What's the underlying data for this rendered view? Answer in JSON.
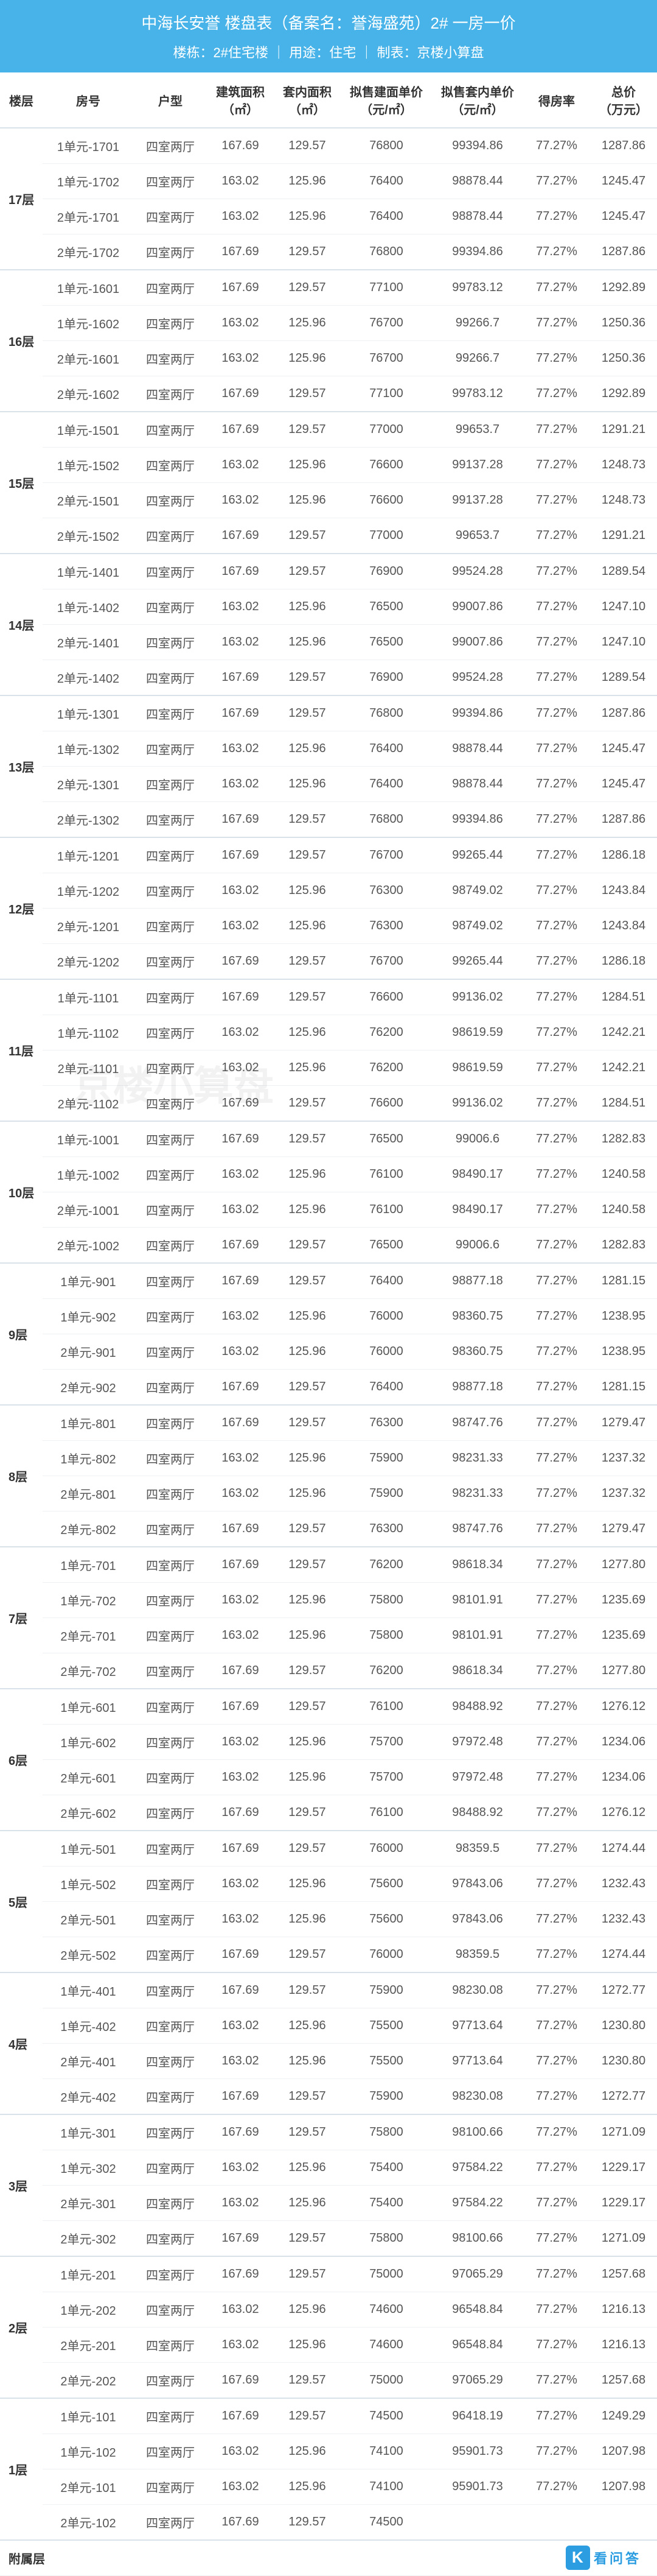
{
  "header": {
    "title": "中海长安誉 楼盘表（备案名：誉海盛苑）2# 一房一价",
    "sub": "楼栋：2#住宅楼 ｜ 用途：住宅 ｜ 制表：京楼小算盘"
  },
  "columns": [
    {
      "label": "楼层"
    },
    {
      "label": "房号"
    },
    {
      "label": "户型"
    },
    {
      "label": "建筑面积",
      "unit": "（㎡）"
    },
    {
      "label": "套内面积",
      "unit": "（㎡）"
    },
    {
      "label": "拟售建面单价",
      "unit": "（元/㎡）"
    },
    {
      "label": "拟售套内单价",
      "unit": "（元/㎡）"
    },
    {
      "label": "得房率"
    },
    {
      "label": "总价",
      "unit": "（万元）"
    }
  ],
  "col_classes": [
    "col-floor",
    "col-room",
    "col-type",
    "col-barea",
    "col-iarea",
    "col-bprice",
    "col-iprice",
    "col-ratio",
    "col-total"
  ],
  "floors": [
    {
      "floor": "17层",
      "rows": [
        [
          "1单元-1701",
          "四室两厅",
          "167.69",
          "129.57",
          "76800",
          "99394.86",
          "77.27%",
          "1287.86"
        ],
        [
          "1单元-1702",
          "四室两厅",
          "163.02",
          "125.96",
          "76400",
          "98878.44",
          "77.27%",
          "1245.47"
        ],
        [
          "2单元-1701",
          "四室两厅",
          "163.02",
          "125.96",
          "76400",
          "98878.44",
          "77.27%",
          "1245.47"
        ],
        [
          "2单元-1702",
          "四室两厅",
          "167.69",
          "129.57",
          "76800",
          "99394.86",
          "77.27%",
          "1287.86"
        ]
      ]
    },
    {
      "floor": "16层",
      "rows": [
        [
          "1单元-1601",
          "四室两厅",
          "167.69",
          "129.57",
          "77100",
          "99783.12",
          "77.27%",
          "1292.89"
        ],
        [
          "1单元-1602",
          "四室两厅",
          "163.02",
          "125.96",
          "76700",
          "99266.7",
          "77.27%",
          "1250.36"
        ],
        [
          "2单元-1601",
          "四室两厅",
          "163.02",
          "125.96",
          "76700",
          "99266.7",
          "77.27%",
          "1250.36"
        ],
        [
          "2单元-1602",
          "四室两厅",
          "167.69",
          "129.57",
          "77100",
          "99783.12",
          "77.27%",
          "1292.89"
        ]
      ]
    },
    {
      "floor": "15层",
      "rows": [
        [
          "1单元-1501",
          "四室两厅",
          "167.69",
          "129.57",
          "77000",
          "99653.7",
          "77.27%",
          "1291.21"
        ],
        [
          "1单元-1502",
          "四室两厅",
          "163.02",
          "125.96",
          "76600",
          "99137.28",
          "77.27%",
          "1248.73"
        ],
        [
          "2单元-1501",
          "四室两厅",
          "163.02",
          "125.96",
          "76600",
          "99137.28",
          "77.27%",
          "1248.73"
        ],
        [
          "2单元-1502",
          "四室两厅",
          "167.69",
          "129.57",
          "77000",
          "99653.7",
          "77.27%",
          "1291.21"
        ]
      ]
    },
    {
      "floor": "14层",
      "rows": [
        [
          "1单元-1401",
          "四室两厅",
          "167.69",
          "129.57",
          "76900",
          "99524.28",
          "77.27%",
          "1289.54"
        ],
        [
          "1单元-1402",
          "四室两厅",
          "163.02",
          "125.96",
          "76500",
          "99007.86",
          "77.27%",
          "1247.10"
        ],
        [
          "2单元-1401",
          "四室两厅",
          "163.02",
          "125.96",
          "76500",
          "99007.86",
          "77.27%",
          "1247.10"
        ],
        [
          "2单元-1402",
          "四室两厅",
          "167.69",
          "129.57",
          "76900",
          "99524.28",
          "77.27%",
          "1289.54"
        ]
      ]
    },
    {
      "floor": "13层",
      "rows": [
        [
          "1单元-1301",
          "四室两厅",
          "167.69",
          "129.57",
          "76800",
          "99394.86",
          "77.27%",
          "1287.86"
        ],
        [
          "1单元-1302",
          "四室两厅",
          "163.02",
          "125.96",
          "76400",
          "98878.44",
          "77.27%",
          "1245.47"
        ],
        [
          "2单元-1301",
          "四室两厅",
          "163.02",
          "125.96",
          "76400",
          "98878.44",
          "77.27%",
          "1245.47"
        ],
        [
          "2单元-1302",
          "四室两厅",
          "167.69",
          "129.57",
          "76800",
          "99394.86",
          "77.27%",
          "1287.86"
        ]
      ]
    },
    {
      "floor": "12层",
      "rows": [
        [
          "1单元-1201",
          "四室两厅",
          "167.69",
          "129.57",
          "76700",
          "99265.44",
          "77.27%",
          "1286.18"
        ],
        [
          "1单元-1202",
          "四室两厅",
          "163.02",
          "125.96",
          "76300",
          "98749.02",
          "77.27%",
          "1243.84"
        ],
        [
          "2单元-1201",
          "四室两厅",
          "163.02",
          "125.96",
          "76300",
          "98749.02",
          "77.27%",
          "1243.84"
        ],
        [
          "2单元-1202",
          "四室两厅",
          "167.69",
          "129.57",
          "76700",
          "99265.44",
          "77.27%",
          "1286.18"
        ]
      ]
    },
    {
      "floor": "11层",
      "rows": [
        [
          "1单元-1101",
          "四室两厅",
          "167.69",
          "129.57",
          "76600",
          "99136.02",
          "77.27%",
          "1284.51"
        ],
        [
          "1单元-1102",
          "四室两厅",
          "163.02",
          "125.96",
          "76200",
          "98619.59",
          "77.27%",
          "1242.21"
        ],
        [
          "2单元-1101",
          "四室两厅",
          "163.02",
          "125.96",
          "76200",
          "98619.59",
          "77.27%",
          "1242.21"
        ],
        [
          "2单元-1102",
          "四室两厅",
          "167.69",
          "129.57",
          "76600",
          "99136.02",
          "77.27%",
          "1284.51"
        ]
      ]
    },
    {
      "floor": "10层",
      "rows": [
        [
          "1单元-1001",
          "四室两厅",
          "167.69",
          "129.57",
          "76500",
          "99006.6",
          "77.27%",
          "1282.83"
        ],
        [
          "1单元-1002",
          "四室两厅",
          "163.02",
          "125.96",
          "76100",
          "98490.17",
          "77.27%",
          "1240.58"
        ],
        [
          "2单元-1001",
          "四室两厅",
          "163.02",
          "125.96",
          "76100",
          "98490.17",
          "77.27%",
          "1240.58"
        ],
        [
          "2单元-1002",
          "四室两厅",
          "167.69",
          "129.57",
          "76500",
          "99006.6",
          "77.27%",
          "1282.83"
        ]
      ]
    },
    {
      "floor": "9层",
      "rows": [
        [
          "1单元-901",
          "四室两厅",
          "167.69",
          "129.57",
          "76400",
          "98877.18",
          "77.27%",
          "1281.15"
        ],
        [
          "1单元-902",
          "四室两厅",
          "163.02",
          "125.96",
          "76000",
          "98360.75",
          "77.27%",
          "1238.95"
        ],
        [
          "2单元-901",
          "四室两厅",
          "163.02",
          "125.96",
          "76000",
          "98360.75",
          "77.27%",
          "1238.95"
        ],
        [
          "2单元-902",
          "四室两厅",
          "167.69",
          "129.57",
          "76400",
          "98877.18",
          "77.27%",
          "1281.15"
        ]
      ]
    },
    {
      "floor": "8层",
      "rows": [
        [
          "1单元-801",
          "四室两厅",
          "167.69",
          "129.57",
          "76300",
          "98747.76",
          "77.27%",
          "1279.47"
        ],
        [
          "1单元-802",
          "四室两厅",
          "163.02",
          "125.96",
          "75900",
          "98231.33",
          "77.27%",
          "1237.32"
        ],
        [
          "2单元-801",
          "四室两厅",
          "163.02",
          "125.96",
          "75900",
          "98231.33",
          "77.27%",
          "1237.32"
        ],
        [
          "2单元-802",
          "四室两厅",
          "167.69",
          "129.57",
          "76300",
          "98747.76",
          "77.27%",
          "1279.47"
        ]
      ]
    },
    {
      "floor": "7层",
      "rows": [
        [
          "1单元-701",
          "四室两厅",
          "167.69",
          "129.57",
          "76200",
          "98618.34",
          "77.27%",
          "1277.80"
        ],
        [
          "1单元-702",
          "四室两厅",
          "163.02",
          "125.96",
          "75800",
          "98101.91",
          "77.27%",
          "1235.69"
        ],
        [
          "2单元-701",
          "四室两厅",
          "163.02",
          "125.96",
          "75800",
          "98101.91",
          "77.27%",
          "1235.69"
        ],
        [
          "2单元-702",
          "四室两厅",
          "167.69",
          "129.57",
          "76200",
          "98618.34",
          "77.27%",
          "1277.80"
        ]
      ]
    },
    {
      "floor": "6层",
      "rows": [
        [
          "1单元-601",
          "四室两厅",
          "167.69",
          "129.57",
          "76100",
          "98488.92",
          "77.27%",
          "1276.12"
        ],
        [
          "1单元-602",
          "四室两厅",
          "163.02",
          "125.96",
          "75700",
          "97972.48",
          "77.27%",
          "1234.06"
        ],
        [
          "2单元-601",
          "四室两厅",
          "163.02",
          "125.96",
          "75700",
          "97972.48",
          "77.27%",
          "1234.06"
        ],
        [
          "2单元-602",
          "四室两厅",
          "167.69",
          "129.57",
          "76100",
          "98488.92",
          "77.27%",
          "1276.12"
        ]
      ]
    },
    {
      "floor": "5层",
      "rows": [
        [
          "1单元-501",
          "四室两厅",
          "167.69",
          "129.57",
          "76000",
          "98359.5",
          "77.27%",
          "1274.44"
        ],
        [
          "1单元-502",
          "四室两厅",
          "163.02",
          "125.96",
          "75600",
          "97843.06",
          "77.27%",
          "1232.43"
        ],
        [
          "2单元-501",
          "四室两厅",
          "163.02",
          "125.96",
          "75600",
          "97843.06",
          "77.27%",
          "1232.43"
        ],
        [
          "2单元-502",
          "四室两厅",
          "167.69",
          "129.57",
          "76000",
          "98359.5",
          "77.27%",
          "1274.44"
        ]
      ]
    },
    {
      "floor": "4层",
      "rows": [
        [
          "1单元-401",
          "四室两厅",
          "167.69",
          "129.57",
          "75900",
          "98230.08",
          "77.27%",
          "1272.77"
        ],
        [
          "1单元-402",
          "四室两厅",
          "163.02",
          "125.96",
          "75500",
          "97713.64",
          "77.27%",
          "1230.80"
        ],
        [
          "2单元-401",
          "四室两厅",
          "163.02",
          "125.96",
          "75500",
          "97713.64",
          "77.27%",
          "1230.80"
        ],
        [
          "2单元-402",
          "四室两厅",
          "167.69",
          "129.57",
          "75900",
          "98230.08",
          "77.27%",
          "1272.77"
        ]
      ]
    },
    {
      "floor": "3层",
      "rows": [
        [
          "1单元-301",
          "四室两厅",
          "167.69",
          "129.57",
          "75800",
          "98100.66",
          "77.27%",
          "1271.09"
        ],
        [
          "1单元-302",
          "四室两厅",
          "163.02",
          "125.96",
          "75400",
          "97584.22",
          "77.27%",
          "1229.17"
        ],
        [
          "2单元-301",
          "四室两厅",
          "163.02",
          "125.96",
          "75400",
          "97584.22",
          "77.27%",
          "1229.17"
        ],
        [
          "2单元-302",
          "四室两厅",
          "167.69",
          "129.57",
          "75800",
          "98100.66",
          "77.27%",
          "1271.09"
        ]
      ]
    },
    {
      "floor": "2层",
      "rows": [
        [
          "1单元-201",
          "四室两厅",
          "167.69",
          "129.57",
          "75000",
          "97065.29",
          "77.27%",
          "1257.68"
        ],
        [
          "1单元-202",
          "四室两厅",
          "163.02",
          "125.96",
          "74600",
          "96548.84",
          "77.27%",
          "1216.13"
        ],
        [
          "2单元-201",
          "四室两厅",
          "163.02",
          "125.96",
          "74600",
          "96548.84",
          "77.27%",
          "1216.13"
        ],
        [
          "2单元-202",
          "四室两厅",
          "167.69",
          "129.57",
          "75000",
          "97065.29",
          "77.27%",
          "1257.68"
        ]
      ]
    },
    {
      "floor": "1层",
      "rows": [
        [
          "1单元-101",
          "四室两厅",
          "167.69",
          "129.57",
          "74500",
          "96418.19",
          "77.27%",
          "1249.29"
        ],
        [
          "1单元-102",
          "四室两厅",
          "163.02",
          "125.96",
          "74100",
          "95901.73",
          "77.27%",
          "1207.98"
        ],
        [
          "2单元-101",
          "四室两厅",
          "163.02",
          "125.96",
          "74100",
          "95901.73",
          "77.27%",
          "1207.98"
        ],
        [
          "2单元-102",
          "四室两厅",
          "167.69",
          "129.57",
          "74500",
          "",
          "",
          ""
        ]
      ]
    }
  ],
  "footer_label": "附属层",
  "watermark_text": "京楼小算盘",
  "brand_text": "看问答",
  "styling": {
    "header_bg": "#48b3e8",
    "header_fg": "#ffffff",
    "row_border": "#eef2f5",
    "group_border": "#d9e2e9",
    "body_font_size": 20,
    "header_font_size": 20,
    "title_font_size": 26,
    "sub_font_size": 22
  }
}
